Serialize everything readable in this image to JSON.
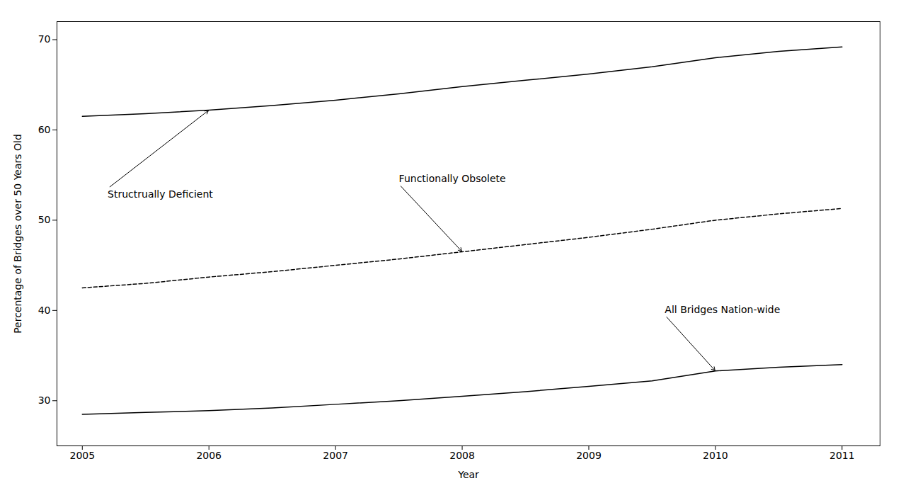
{
  "chart_data": {
    "type": "line",
    "x": [
      2005,
      2005.5,
      2006,
      2006.5,
      2007,
      2007.5,
      2008,
      2008.5,
      2009,
      2009.5,
      2010,
      2010.5,
      2011
    ],
    "series": [
      {
        "color": "#000000",
        "line_style": "solid",
        "values": [
          61.5,
          61.8,
          62.2,
          62.7,
          63.3,
          64.0,
          64.8,
          65.5,
          66.2,
          67.0,
          68.0,
          68.7,
          69.2
        ]
      },
      {
        "color": "#000000",
        "line_style": "dashed",
        "values": [
          42.5,
          43.0,
          43.7,
          44.3,
          45.0,
          45.7,
          46.5,
          47.3,
          48.1,
          49.0,
          50.0,
          50.7,
          51.3
        ]
      },
      {
        "color": "#000000",
        "line_style": "solid",
        "values": [
          28.5,
          28.7,
          28.9,
          29.2,
          29.6,
          30.0,
          30.5,
          31.0,
          31.6,
          32.2,
          33.3,
          33.7,
          34.0
        ]
      }
    ],
    "xlabel": "Year",
    "ylabel": "Percentage of Bridges over 50 Years Old",
    "xlim": [
      2004.8,
      2011.3
    ],
    "ylim": [
      25,
      72
    ],
    "xticks": [
      2005,
      2006,
      2007,
      2008,
      2009,
      2010,
      2011
    ],
    "yticks": [
      30,
      40,
      50,
      60,
      70
    ],
    "grid": false,
    "annotations": [
      {
        "text": "Structrually Deficient",
        "xy": [
          2006.0,
          62.2
        ],
        "xytext": [
          2005.2,
          53.5
        ]
      },
      {
        "text": "Functionally Obsolete",
        "xy": [
          2008.0,
          46.5
        ],
        "xytext": [
          2007.5,
          54.0
        ]
      },
      {
        "text": "All Bridges Nation-wide",
        "xy": [
          2010.0,
          33.3
        ],
        "xytext": [
          2009.6,
          39.5
        ]
      }
    ]
  }
}
